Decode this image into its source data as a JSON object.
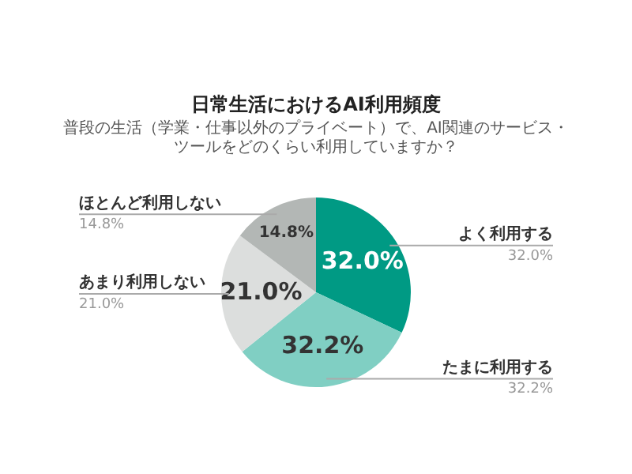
{
  "chart_data": {
    "type": "pie",
    "title": "日常生活におけるAI利用頻度",
    "subtitle": "普段の生活（学業・仕事以外のプライベート）で、AI関連のサービス・ツールをどのくらい利用していますか？",
    "categories": [
      "よく利用する",
      "たまに利用する",
      "あまり利用しない",
      "ほとんど利用しない"
    ],
    "values": [
      32.0,
      32.2,
      21.0,
      14.8
    ],
    "value_labels": [
      "32.0%",
      "32.2%",
      "21.0%",
      "14.8%"
    ],
    "colors": [
      "#009a84",
      "#80cfc3",
      "#dcdedd",
      "#b3b7b5"
    ],
    "legend": false
  }
}
